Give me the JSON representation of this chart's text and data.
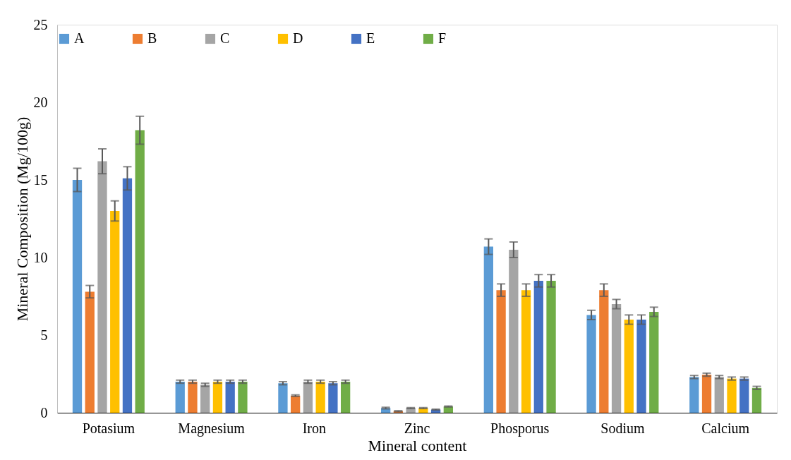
{
  "chart_data": {
    "type": "bar",
    "xlabel": "Mineral content",
    "ylabel": "Mineral Composition (Mg/100g)",
    "categories": [
      "Potasium",
      "Magnesium",
      "Iron",
      "Zinc",
      "Phosporus",
      "Sodium",
      "Calcium"
    ],
    "ylim": [
      0,
      25
    ],
    "yticks": [
      0,
      5,
      10,
      15,
      20,
      25
    ],
    "grid": false,
    "legend": "top",
    "series": [
      {
        "name": "A",
        "color": "#5b9bd5",
        "values": [
          15.0,
          2.0,
          1.9,
          0.3,
          10.7,
          6.3,
          2.3
        ],
        "errors": [
          0.75,
          0.1,
          0.1,
          0.05,
          0.5,
          0.3,
          0.1
        ]
      },
      {
        "name": "B",
        "color": "#ed7d31",
        "values": [
          7.8,
          2.0,
          1.1,
          0.1,
          7.9,
          7.9,
          2.45
        ],
        "errors": [
          0.4,
          0.1,
          0.05,
          0.03,
          0.4,
          0.4,
          0.1
        ]
      },
      {
        "name": "C",
        "color": "#a5a5a5",
        "values": [
          16.2,
          1.8,
          2.0,
          0.3,
          10.5,
          7.0,
          2.3
        ],
        "errors": [
          0.8,
          0.1,
          0.1,
          0.03,
          0.5,
          0.3,
          0.1
        ]
      },
      {
        "name": "D",
        "color": "#ffc000",
        "values": [
          13.0,
          2.0,
          2.0,
          0.3,
          7.9,
          6.0,
          2.2
        ],
        "errors": [
          0.65,
          0.1,
          0.1,
          0.03,
          0.4,
          0.3,
          0.1
        ]
      },
      {
        "name": "E",
        "color": "#4472c4",
        "values": [
          15.1,
          2.0,
          1.9,
          0.2,
          8.5,
          6.0,
          2.2
        ],
        "errors": [
          0.75,
          0.1,
          0.1,
          0.03,
          0.4,
          0.3,
          0.1
        ]
      },
      {
        "name": "F",
        "color": "#70ad47",
        "values": [
          18.2,
          2.0,
          2.0,
          0.4,
          8.5,
          6.5,
          1.6
        ],
        "errors": [
          0.9,
          0.1,
          0.1,
          0.03,
          0.4,
          0.3,
          0.1
        ]
      }
    ]
  }
}
